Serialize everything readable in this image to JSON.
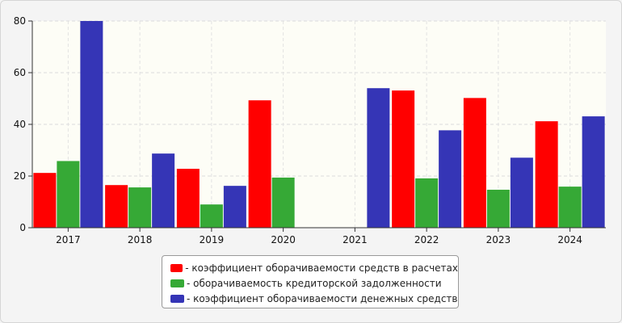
{
  "chart_data": {
    "type": "bar",
    "title": "",
    "xlabel": "",
    "ylabel": "",
    "categories": [
      "2017",
      "2018",
      "2019",
      "2020",
      "2021",
      "2022",
      "2023",
      "2024"
    ],
    "ylim": [
      0,
      80
    ],
    "yticks": [
      0,
      20,
      40,
      60,
      80
    ],
    "grid": true,
    "legend_position": "bottom",
    "series": [
      {
        "name": "- коэффициент оборачиваемости средств в расчетах",
        "color": "#ff0000",
        "values": [
          21.2,
          16.5,
          22.8,
          49.3,
          0,
          53.1,
          50.2,
          41.2
        ]
      },
      {
        "name": "- оборачиваемость кредиторской задолженности",
        "color": "#36a936",
        "values": [
          25.8,
          15.6,
          9.0,
          19.4,
          0,
          19.1,
          14.7,
          15.9
        ]
      },
      {
        "name": "- коэффициент оборачиваемости денежных средств",
        "color": "#3535b6",
        "values": [
          80.0,
          28.7,
          16.2,
          0,
          54.0,
          37.7,
          27.1,
          43.1
        ]
      }
    ]
  }
}
